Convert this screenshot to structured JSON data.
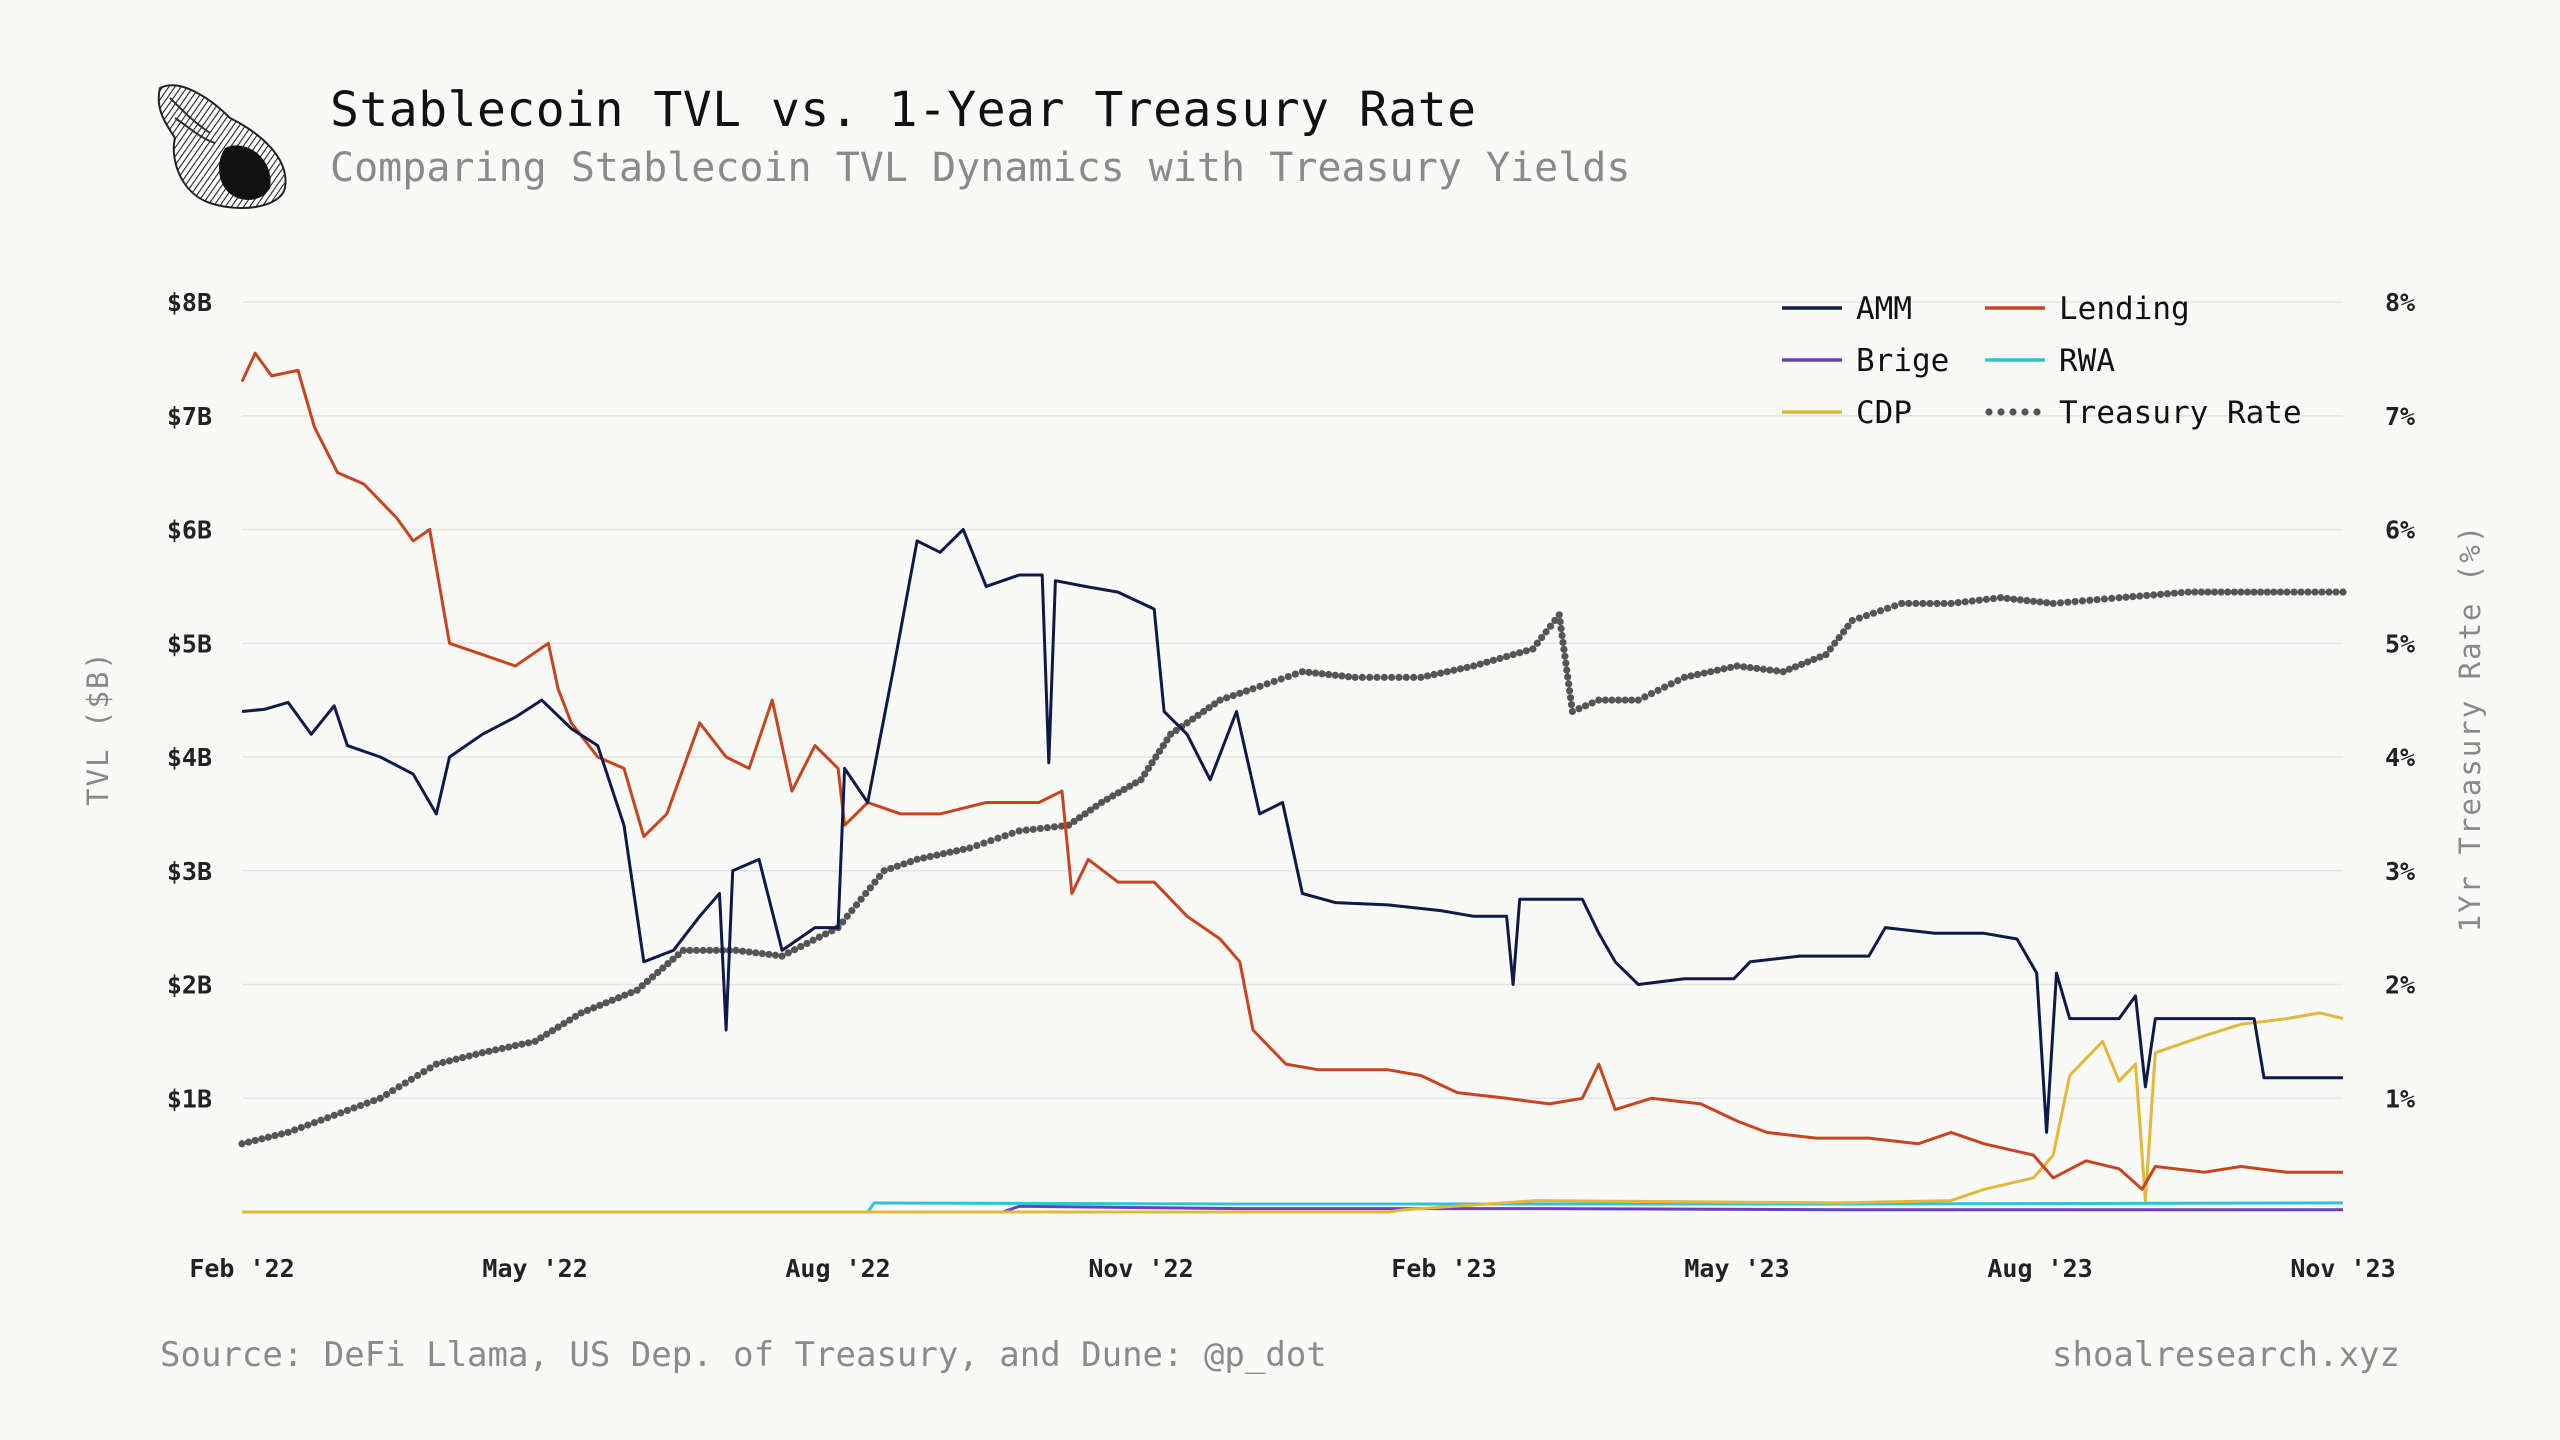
{
  "header": {
    "title": "Stablecoin TVL vs. 1-Year Treasury Rate",
    "subtitle": "Comparing Stablecoin TVL Dynamics with Treasury Yields"
  },
  "footer": {
    "source": "Source: DeFi Llama, US Dep. of Treasury, and Dune: @p_dot",
    "site": "shoalresearch.xyz"
  },
  "colors": {
    "AMM": "#0d1b4a",
    "Lending": "#c8441f",
    "Brige": "#6a3fc0",
    "RWA": "#2ec4d0",
    "CDP": "#e2b73a",
    "Treasury Rate": "#555555",
    "grid": "#e4e4e4"
  },
  "chart_data": {
    "type": "line",
    "title": "Stablecoin TVL vs. 1-Year Treasury Rate",
    "ylabel": "TVL ($B)",
    "y2label": "1Yr Treasury Rate (%)",
    "ylim": [
      0,
      8
    ],
    "y2lim": [
      0,
      8
    ],
    "xlim": [
      "2022-02-01",
      "2023-11-01"
    ],
    "grid": true,
    "legend_position": "top-right",
    "x_ticks": [
      {
        "date": "2022-02-01",
        "label": "Feb '22"
      },
      {
        "date": "2022-05-01",
        "label": "May '22"
      },
      {
        "date": "2022-08-01",
        "label": "Aug '22"
      },
      {
        "date": "2022-11-01",
        "label": "Nov '22"
      },
      {
        "date": "2023-02-01",
        "label": "Feb '23"
      },
      {
        "date": "2023-05-01",
        "label": "May '23"
      },
      {
        "date": "2023-08-01",
        "label": "Aug '23"
      },
      {
        "date": "2023-11-01",
        "label": "Nov '23"
      }
    ],
    "y_ticks": [
      {
        "value": 1,
        "label": "$1B"
      },
      {
        "value": 2,
        "label": "$2B"
      },
      {
        "value": 3,
        "label": "$3B"
      },
      {
        "value": 4,
        "label": "$4B"
      },
      {
        "value": 5,
        "label": "$5B"
      },
      {
        "value": 6,
        "label": "$6B"
      },
      {
        "value": 7,
        "label": "$7B"
      },
      {
        "value": 8,
        "label": "$8B"
      }
    ],
    "y2_ticks": [
      {
        "value": 1,
        "label": "1%"
      },
      {
        "value": 2,
        "label": "2%"
      },
      {
        "value": 3,
        "label": "3%"
      },
      {
        "value": 4,
        "label": "4%"
      },
      {
        "value": 5,
        "label": "5%"
      },
      {
        "value": 6,
        "label": "6%"
      },
      {
        "value": 7,
        "label": "7%"
      },
      {
        "value": 8,
        "label": "8%"
      }
    ],
    "legend": [
      "AMM",
      "Lending",
      "Brige",
      "RWA",
      "CDP",
      "Treasury Rate"
    ],
    "series": [
      {
        "name": "AMM",
        "axis": "left",
        "style": "line",
        "points": [
          [
            "2022-02-01",
            4.4
          ],
          [
            "2022-02-08",
            4.42
          ],
          [
            "2022-02-15",
            4.48
          ],
          [
            "2022-02-22",
            4.2
          ],
          [
            "2022-03-01",
            4.45
          ],
          [
            "2022-03-05",
            4.1
          ],
          [
            "2022-03-15",
            4.0
          ],
          [
            "2022-03-25",
            3.85
          ],
          [
            "2022-04-01",
            3.5
          ],
          [
            "2022-04-05",
            4.0
          ],
          [
            "2022-04-15",
            4.2
          ],
          [
            "2022-04-25",
            4.35
          ],
          [
            "2022-05-03",
            4.5
          ],
          [
            "2022-05-12",
            4.25
          ],
          [
            "2022-05-20",
            4.1
          ],
          [
            "2022-05-28",
            3.4
          ],
          [
            "2022-06-03",
            2.2
          ],
          [
            "2022-06-12",
            2.3
          ],
          [
            "2022-06-20",
            2.6
          ],
          [
            "2022-06-26",
            2.8
          ],
          [
            "2022-06-28",
            1.6
          ],
          [
            "2022-06-30",
            3.0
          ],
          [
            "2022-07-08",
            3.1
          ],
          [
            "2022-07-15",
            2.3
          ],
          [
            "2022-07-25",
            2.5
          ],
          [
            "2022-08-01",
            2.5
          ],
          [
            "2022-08-03",
            3.9
          ],
          [
            "2022-08-10",
            3.6
          ],
          [
            "2022-08-18",
            4.8
          ],
          [
            "2022-08-25",
            5.9
          ],
          [
            "2022-09-01",
            5.8
          ],
          [
            "2022-09-08",
            6.0
          ],
          [
            "2022-09-15",
            5.5
          ],
          [
            "2022-09-25",
            5.6
          ],
          [
            "2022-10-02",
            5.6
          ],
          [
            "2022-10-04",
            3.95
          ],
          [
            "2022-10-06",
            5.55
          ],
          [
            "2022-10-15",
            5.5
          ],
          [
            "2022-10-25",
            5.45
          ],
          [
            "2022-11-05",
            5.3
          ],
          [
            "2022-11-08",
            4.4
          ],
          [
            "2022-11-15",
            4.2
          ],
          [
            "2022-11-22",
            3.8
          ],
          [
            "2022-11-30",
            4.4
          ],
          [
            "2022-12-07",
            3.5
          ],
          [
            "2022-12-14",
            3.6
          ],
          [
            "2022-12-20",
            2.8
          ],
          [
            "2022-12-30",
            2.72
          ],
          [
            "2023-01-15",
            2.7
          ],
          [
            "2023-01-31",
            2.65
          ],
          [
            "2023-02-10",
            2.6
          ],
          [
            "2023-02-20",
            2.6
          ],
          [
            "2023-02-22",
            2.0
          ],
          [
            "2023-02-24",
            2.75
          ],
          [
            "2023-03-15",
            2.75
          ],
          [
            "2023-03-20",
            2.45
          ],
          [
            "2023-03-25",
            2.2
          ],
          [
            "2023-04-01",
            2.0
          ],
          [
            "2023-04-15",
            2.05
          ],
          [
            "2023-04-30",
            2.05
          ],
          [
            "2023-05-05",
            2.2
          ],
          [
            "2023-05-20",
            2.25
          ],
          [
            "2023-06-10",
            2.25
          ],
          [
            "2023-06-15",
            2.5
          ],
          [
            "2023-06-30",
            2.45
          ],
          [
            "2023-07-15",
            2.45
          ],
          [
            "2023-07-25",
            2.4
          ],
          [
            "2023-07-31",
            2.1
          ],
          [
            "2023-08-03",
            0.7
          ],
          [
            "2023-08-06",
            2.1
          ],
          [
            "2023-08-10",
            1.7
          ],
          [
            "2023-08-25",
            1.7
          ],
          [
            "2023-08-30",
            1.9
          ],
          [
            "2023-09-02",
            1.1
          ],
          [
            "2023-09-05",
            1.7
          ],
          [
            "2023-09-20",
            1.7
          ],
          [
            "2023-10-05",
            1.7
          ],
          [
            "2023-10-08",
            1.18
          ],
          [
            "2023-10-20",
            1.18
          ],
          [
            "2023-11-01",
            1.18
          ]
        ]
      },
      {
        "name": "Lending",
        "axis": "left",
        "style": "line",
        "points": [
          [
            "2022-02-01",
            7.3
          ],
          [
            "2022-02-05",
            7.55
          ],
          [
            "2022-02-10",
            7.35
          ],
          [
            "2022-02-18",
            7.4
          ],
          [
            "2022-02-23",
            6.9
          ],
          [
            "2022-03-02",
            6.5
          ],
          [
            "2022-03-10",
            6.4
          ],
          [
            "2022-03-20",
            6.1
          ],
          [
            "2022-03-25",
            5.9
          ],
          [
            "2022-03-30",
            6.0
          ],
          [
            "2022-04-05",
            5.0
          ],
          [
            "2022-04-15",
            4.9
          ],
          [
            "2022-04-25",
            4.8
          ],
          [
            "2022-05-05",
            5.0
          ],
          [
            "2022-05-08",
            4.6
          ],
          [
            "2022-05-12",
            4.3
          ],
          [
            "2022-05-20",
            4.0
          ],
          [
            "2022-05-28",
            3.9
          ],
          [
            "2022-06-03",
            3.3
          ],
          [
            "2022-06-10",
            3.5
          ],
          [
            "2022-06-20",
            4.3
          ],
          [
            "2022-06-28",
            4.0
          ],
          [
            "2022-07-05",
            3.9
          ],
          [
            "2022-07-12",
            4.5
          ],
          [
            "2022-07-18",
            3.7
          ],
          [
            "2022-07-25",
            4.1
          ],
          [
            "2022-08-01",
            3.9
          ],
          [
            "2022-08-03",
            3.4
          ],
          [
            "2022-08-10",
            3.6
          ],
          [
            "2022-08-20",
            3.5
          ],
          [
            "2022-09-01",
            3.5
          ],
          [
            "2022-09-15",
            3.6
          ],
          [
            "2022-10-01",
            3.6
          ],
          [
            "2022-10-08",
            3.7
          ],
          [
            "2022-10-11",
            2.8
          ],
          [
            "2022-10-16",
            3.1
          ],
          [
            "2022-10-25",
            2.9
          ],
          [
            "2022-11-05",
            2.9
          ],
          [
            "2022-11-15",
            2.6
          ],
          [
            "2022-11-25",
            2.4
          ],
          [
            "2022-12-01",
            2.2
          ],
          [
            "2022-12-05",
            1.6
          ],
          [
            "2022-12-15",
            1.3
          ],
          [
            "2022-12-25",
            1.25
          ],
          [
            "2023-01-15",
            1.25
          ],
          [
            "2023-01-25",
            1.2
          ],
          [
            "2023-02-05",
            1.05
          ],
          [
            "2023-02-20",
            1.0
          ],
          [
            "2023-03-05",
            0.95
          ],
          [
            "2023-03-15",
            1.0
          ],
          [
            "2023-03-20",
            1.3
          ],
          [
            "2023-03-25",
            0.9
          ],
          [
            "2023-04-05",
            1.0
          ],
          [
            "2023-04-20",
            0.95
          ],
          [
            "2023-05-01",
            0.8
          ],
          [
            "2023-05-10",
            0.7
          ],
          [
            "2023-05-25",
            0.65
          ],
          [
            "2023-06-10",
            0.65
          ],
          [
            "2023-06-25",
            0.6
          ],
          [
            "2023-07-05",
            0.7
          ],
          [
            "2023-07-15",
            0.6
          ],
          [
            "2023-07-30",
            0.5
          ],
          [
            "2023-08-05",
            0.3
          ],
          [
            "2023-08-15",
            0.45
          ],
          [
            "2023-08-25",
            0.38
          ],
          [
            "2023-09-01",
            0.2
          ],
          [
            "2023-09-05",
            0.4
          ],
          [
            "2023-09-20",
            0.35
          ],
          [
            "2023-10-01",
            0.4
          ],
          [
            "2023-10-15",
            0.35
          ],
          [
            "2023-11-01",
            0.35
          ]
        ]
      },
      {
        "name": "Brige",
        "axis": "left",
        "style": "line",
        "points": [
          [
            "2022-02-01",
            0.0
          ],
          [
            "2022-09-20",
            0.0
          ],
          [
            "2022-09-25",
            0.05
          ],
          [
            "2022-12-01",
            0.03
          ],
          [
            "2023-03-01",
            0.03
          ],
          [
            "2023-06-01",
            0.02
          ],
          [
            "2023-11-01",
            0.02
          ]
        ]
      },
      {
        "name": "RWA",
        "axis": "left",
        "style": "line",
        "points": [
          [
            "2022-02-01",
            0.0
          ],
          [
            "2022-08-10",
            0.0
          ],
          [
            "2022-08-12",
            0.08
          ],
          [
            "2022-12-01",
            0.07
          ],
          [
            "2023-06-01",
            0.07
          ],
          [
            "2023-11-01",
            0.08
          ]
        ]
      },
      {
        "name": "CDP",
        "axis": "left",
        "style": "line",
        "points": [
          [
            "2022-02-01",
            0.0
          ],
          [
            "2023-01-15",
            0.0
          ],
          [
            "2023-01-20",
            0.02
          ],
          [
            "2023-03-01",
            0.1
          ],
          [
            "2023-06-01",
            0.08
          ],
          [
            "2023-07-05",
            0.1
          ],
          [
            "2023-07-15",
            0.2
          ],
          [
            "2023-07-30",
            0.3
          ],
          [
            "2023-08-05",
            0.5
          ],
          [
            "2023-08-10",
            1.2
          ],
          [
            "2023-08-20",
            1.5
          ],
          [
            "2023-08-25",
            1.15
          ],
          [
            "2023-08-30",
            1.3
          ],
          [
            "2023-09-02",
            0.1
          ],
          [
            "2023-09-05",
            1.4
          ],
          [
            "2023-09-20",
            1.55
          ],
          [
            "2023-10-01",
            1.65
          ],
          [
            "2023-10-15",
            1.7
          ],
          [
            "2023-10-25",
            1.75
          ],
          [
            "2023-11-01",
            1.7
          ]
        ]
      },
      {
        "name": "Treasury Rate",
        "axis": "right",
        "style": "dotted",
        "points": [
          [
            "2022-02-01",
            0.6
          ],
          [
            "2022-02-15",
            0.7
          ],
          [
            "2022-03-01",
            0.85
          ],
          [
            "2022-03-15",
            1.0
          ],
          [
            "2022-04-01",
            1.3
          ],
          [
            "2022-04-15",
            1.4
          ],
          [
            "2022-05-01",
            1.5
          ],
          [
            "2022-05-15",
            1.75
          ],
          [
            "2022-06-01",
            1.95
          ],
          [
            "2022-06-15",
            2.3
          ],
          [
            "2022-07-01",
            2.3
          ],
          [
            "2022-07-15",
            2.25
          ],
          [
            "2022-08-01",
            2.5
          ],
          [
            "2022-08-15",
            3.0
          ],
          [
            "2022-08-25",
            3.1
          ],
          [
            "2022-09-10",
            3.2
          ],
          [
            "2022-09-25",
            3.35
          ],
          [
            "2022-10-10",
            3.4
          ],
          [
            "2022-10-20",
            3.6
          ],
          [
            "2022-11-01",
            3.8
          ],
          [
            "2022-11-10",
            4.2
          ],
          [
            "2022-11-25",
            4.5
          ],
          [
            "2022-12-05",
            4.6
          ],
          [
            "2022-12-20",
            4.75
          ],
          [
            "2023-01-05",
            4.7
          ],
          [
            "2023-01-25",
            4.7
          ],
          [
            "2023-02-10",
            4.8
          ],
          [
            "2023-02-28",
            4.95
          ],
          [
            "2023-03-08",
            5.25
          ],
          [
            "2023-03-12",
            4.4
          ],
          [
            "2023-03-20",
            4.5
          ],
          [
            "2023-04-01",
            4.5
          ],
          [
            "2023-04-15",
            4.7
          ],
          [
            "2023-05-01",
            4.8
          ],
          [
            "2023-05-15",
            4.75
          ],
          [
            "2023-05-28",
            4.9
          ],
          [
            "2023-06-05",
            5.2
          ],
          [
            "2023-06-20",
            5.35
          ],
          [
            "2023-07-05",
            5.35
          ],
          [
            "2023-07-20",
            5.4
          ],
          [
            "2023-08-05",
            5.35
          ],
          [
            "2023-08-25",
            5.4
          ],
          [
            "2023-09-15",
            5.45
          ],
          [
            "2023-10-01",
            5.45
          ],
          [
            "2023-10-15",
            5.45
          ],
          [
            "2023-11-01",
            5.45
          ]
        ]
      }
    ]
  }
}
